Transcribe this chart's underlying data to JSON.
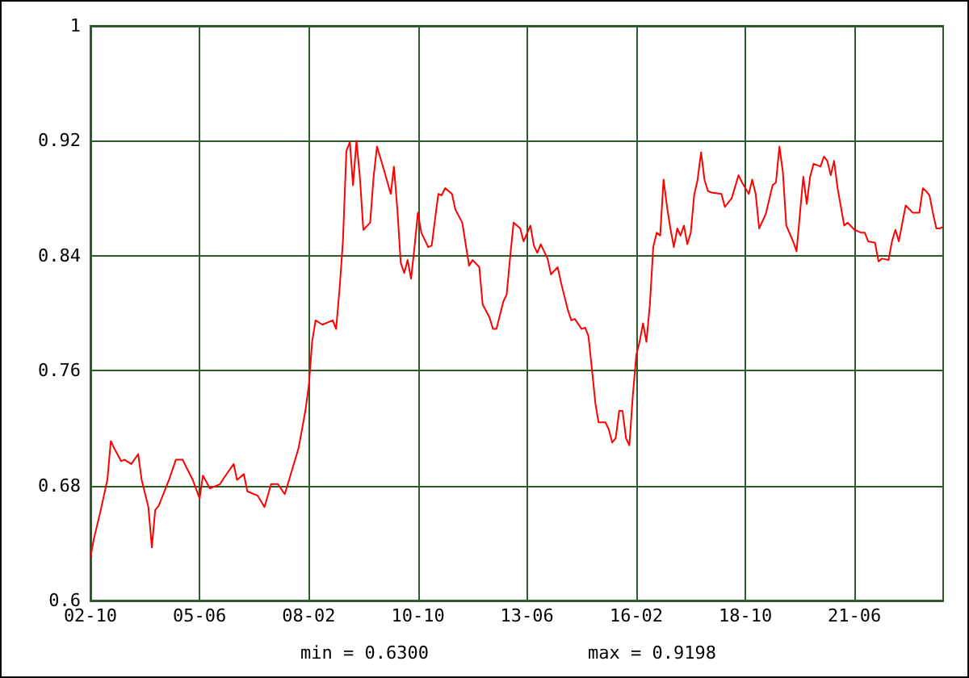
{
  "chart_data": {
    "type": "line",
    "x": [
      "2002-10",
      "2002-11",
      "2003-01",
      "2003-03",
      "2003-04",
      "2003-05",
      "2003-07",
      "2003-08",
      "2003-10",
      "2003-12",
      "2004-01",
      "2004-03",
      "2004-04",
      "2004-05",
      "2004-06",
      "2004-09",
      "2004-11",
      "2005-01",
      "2005-02",
      "2005-04",
      "2005-06",
      "2005-07",
      "2005-09",
      "2005-12",
      "2006-01",
      "2006-04",
      "2006-05",
      "2006-07",
      "2006-08",
      "2006-11",
      "2007-01",
      "2007-03",
      "2007-05",
      "2007-07",
      "2007-08",
      "2007-11",
      "2008-01",
      "2008-02",
      "2008-03",
      "2008-04",
      "2008-06",
      "2008-09",
      "2008-10",
      "2008-11",
      "2008-12",
      "2009-01",
      "2009-02",
      "2009-03",
      "2009-04",
      "2009-05",
      "2009-06",
      "2009-08",
      "2009-09",
      "2009-10",
      "2009-12",
      "2010-02",
      "2010-03",
      "2010-04",
      "2010-05",
      "2010-06",
      "2010-07",
      "2010-08",
      "2010-09",
      "2010-10",
      "2010-11",
      "2011-01",
      "2011-02",
      "2011-04",
      "2011-05",
      "2011-06",
      "2011-08",
      "2011-09",
      "2011-11",
      "2012-01",
      "2012-02",
      "2012-04",
      "2012-05",
      "2012-07",
      "2012-08",
      "2012-09",
      "2012-11",
      "2012-12",
      "2013-01",
      "2013-02",
      "2013-04",
      "2013-05",
      "2013-07",
      "2013-08",
      "2013-09",
      "2013-10",
      "2013-12",
      "2014-01",
      "2014-03",
      "2014-04",
      "2014-06",
      "2014-07",
      "2014-08",
      "2014-10",
      "2014-11",
      "2014-12",
      "2015-01",
      "2015-02",
      "2015-03",
      "2015-05",
      "2015-06",
      "2015-07",
      "2015-08",
      "2015-09",
      "2015-10",
      "2015-11",
      "2015-12",
      "2016-01",
      "2016-02",
      "2016-03",
      "2016-04",
      "2016-05",
      "2016-06",
      "2016-07",
      "2016-08",
      "2016-09",
      "2016-10",
      "2016-11",
      "2016-12",
      "2017-01",
      "2017-02",
      "2017-03",
      "2017-04",
      "2017-05",
      "2017-06",
      "2017-07",
      "2017-08",
      "2017-09",
      "2017-10",
      "2017-11",
      "2017-12",
      "2018-03",
      "2018-04",
      "2018-06",
      "2018-08",
      "2018-09",
      "2018-11",
      "2018-12",
      "2019-01",
      "2019-02",
      "2019-04",
      "2019-06",
      "2019-07",
      "2019-08",
      "2019-09",
      "2019-10",
      "2019-12",
      "2020-01",
      "2020-02",
      "2020-03",
      "2020-04",
      "2020-05",
      "2020-06",
      "2020-08",
      "2020-09",
      "2020-10",
      "2020-11",
      "2020-12",
      "2021-01",
      "2021-03",
      "2021-04",
      "2021-06",
      "2021-08",
      "2021-09",
      "2021-10",
      "2021-12",
      "2022-01",
      "2022-02",
      "2022-04",
      "2022-05",
      "2022-06",
      "2022-07",
      "2022-09",
      "2022-11",
      "2023-01",
      "2023-02",
      "2023-03",
      "2023-04",
      "2023-05",
      "2023-06",
      "2023-07",
      "2023-08"
    ],
    "series": [
      {
        "color": "#ff0000",
        "values": [
          0.63,
          0.643,
          0.663,
          0.684,
          0.711,
          0.706,
          0.697,
          0.698,
          0.695,
          0.702,
          0.684,
          0.665,
          0.637,
          0.663,
          0.666,
          0.684,
          0.698,
          0.698,
          0.693,
          0.684,
          0.671,
          0.687,
          0.678,
          0.681,
          0.685,
          0.695,
          0.684,
          0.688,
          0.676,
          0.673,
          0.665,
          0.681,
          0.681,
          0.674,
          0.682,
          0.706,
          0.732,
          0.75,
          0.78,
          0.795,
          0.792,
          0.795,
          0.789,
          0.817,
          0.85,
          0.913,
          0.919,
          0.889,
          0.92,
          0.895,
          0.858,
          0.863,
          0.895,
          0.916,
          0.9,
          0.883,
          0.902,
          0.872,
          0.835,
          0.828,
          0.837,
          0.824,
          0.846,
          0.87,
          0.856,
          0.846,
          0.847,
          0.883,
          0.882,
          0.887,
          0.883,
          0.872,
          0.863,
          0.833,
          0.837,
          0.832,
          0.806,
          0.797,
          0.789,
          0.789,
          0.808,
          0.813,
          0.839,
          0.863,
          0.859,
          0.85,
          0.861,
          0.847,
          0.842,
          0.848,
          0.838,
          0.827,
          0.832,
          0.821,
          0.802,
          0.795,
          0.796,
          0.789,
          0.79,
          0.784,
          0.761,
          0.737,
          0.724,
          0.724,
          0.719,
          0.71,
          0.713,
          0.732,
          0.732,
          0.713,
          0.708,
          0.743,
          0.771,
          0.78,
          0.793,
          0.78,
          0.806,
          0.846,
          0.856,
          0.854,
          0.893,
          0.874,
          0.859,
          0.846,
          0.859,
          0.854,
          0.861,
          0.848,
          0.856,
          0.882,
          0.893,
          0.912,
          0.893,
          0.885,
          0.884,
          0.883,
          0.874,
          0.88,
          0.896,
          0.891,
          0.883,
          0.893,
          0.883,
          0.859,
          0.869,
          0.889,
          0.891,
          0.916,
          0.898,
          0.861,
          0.85,
          0.843,
          0.87,
          0.895,
          0.876,
          0.895,
          0.904,
          0.902,
          0.909,
          0.906,
          0.896,
          0.906,
          0.887,
          0.861,
          0.863,
          0.858,
          0.856,
          0.856,
          0.85,
          0.849,
          0.836,
          0.838,
          0.837,
          0.85,
          0.858,
          0.85,
          0.875,
          0.87,
          0.87,
          0.887,
          0.885,
          0.882,
          0.87,
          0.859,
          0.859,
          0.86
        ]
      }
    ],
    "xlim": [
      "2002-10",
      "2023-08"
    ],
    "xticks": [
      {
        "value": "2002-10",
        "label": "02-10"
      },
      {
        "value": "2005-06",
        "label": "05-06"
      },
      {
        "value": "2008-02",
        "label": "08-02"
      },
      {
        "value": "2010-10",
        "label": "10-10"
      },
      {
        "value": "2013-06",
        "label": "13-06"
      },
      {
        "value": "2016-02",
        "label": "16-02"
      },
      {
        "value": "2018-10",
        "label": "18-10"
      },
      {
        "value": "2021-06",
        "label": "21-06"
      }
    ],
    "ylim": [
      0.6,
      1
    ],
    "yticks": [
      0.6,
      0.68,
      0.76,
      0.84,
      0.92,
      1
    ],
    "grid": true,
    "marker": "none",
    "line_style": "solid",
    "annotations": [
      "min = 0.6300",
      "max = 0.9198"
    ]
  }
}
